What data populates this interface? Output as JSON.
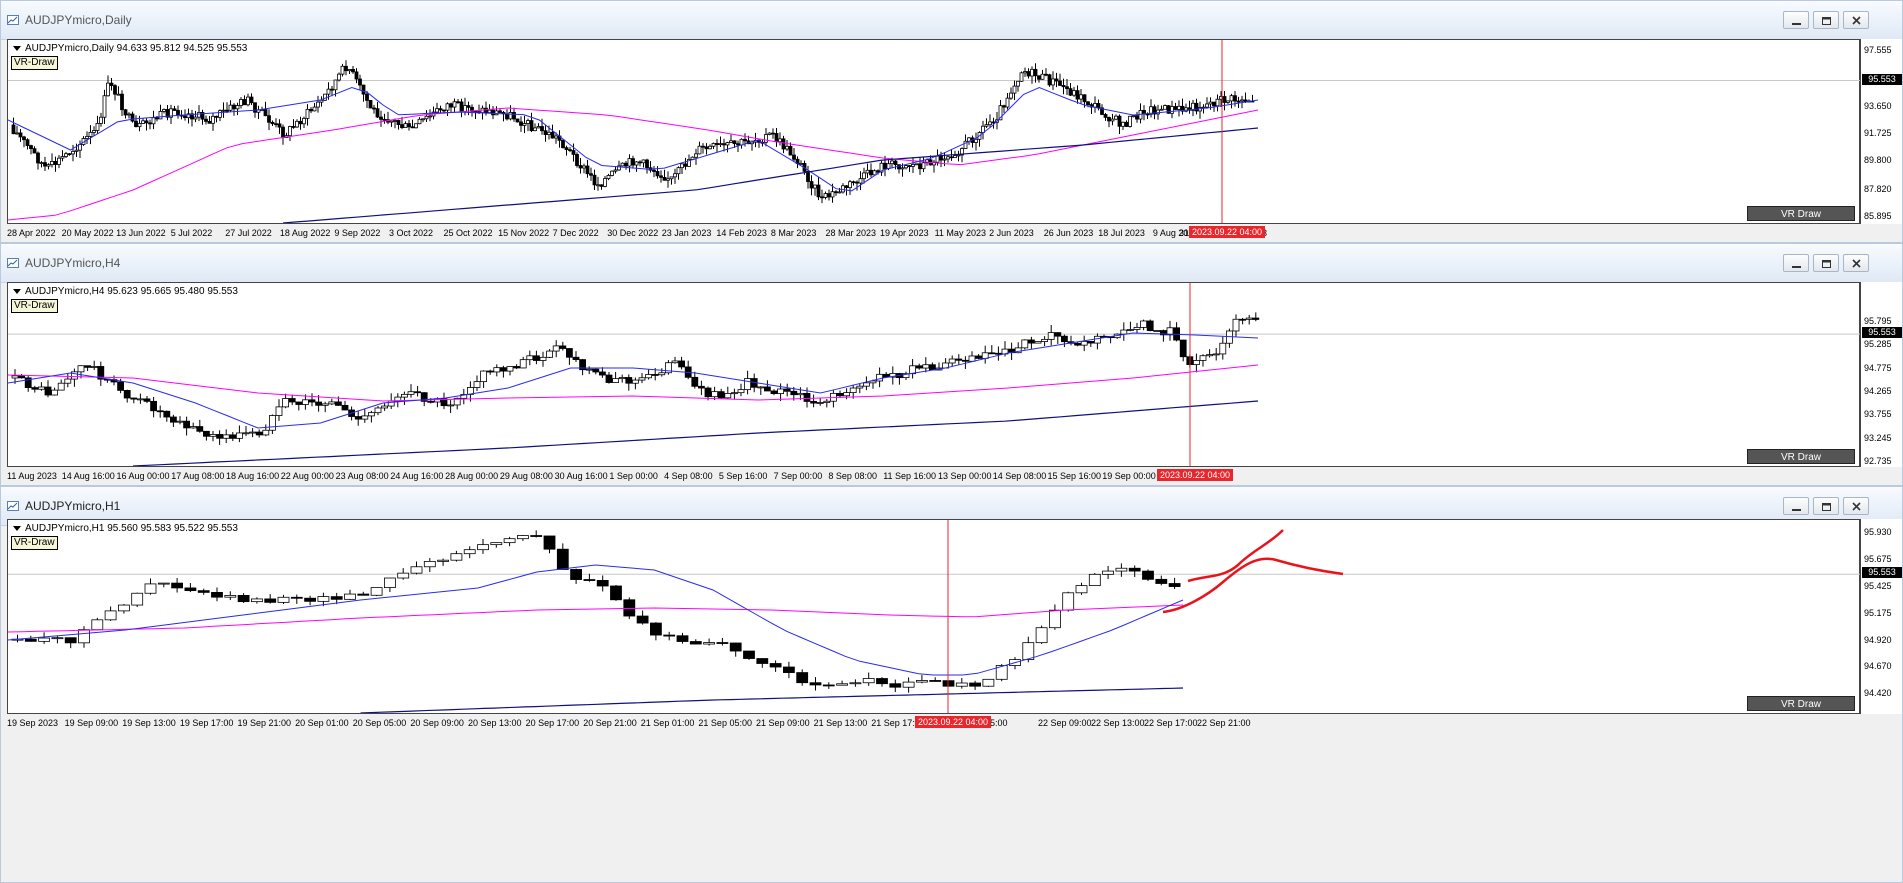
{
  "colors": {
    "ma_fast": "#2a2af0",
    "ma_mid": "#ff00ff",
    "ma_slow": "#101080",
    "cursor_line": "#e8262b",
    "drawing": "#e8141c",
    "price_tag": "#000000"
  },
  "icons": {
    "window": "chart-window-icon",
    "minimize": "minimize-icon",
    "restore": "restore-icon",
    "close": "close-icon"
  },
  "windows": [
    {
      "title": "AUDJPYmicro,Daily",
      "info": "AUDJPYmicro,Daily  94.633 95.812 94.525 95.553",
      "vr_draw_label": "VR-Draw",
      "vr_button_label": "VR Draw",
      "current_price": "95.553",
      "price_labels": [
        "97.555",
        "95.553",
        "93.650",
        "91.725",
        "89.800",
        "87.820",
        "85.895"
      ],
      "price_range": [
        85.895,
        97.555
      ],
      "time_labels": [
        "28 Apr 2022",
        "20 May 2022",
        "13 Jun 2022",
        "5 Jul 2022",
        "27 Jul 2022",
        "18 Aug 2022",
        "9 Sep 2022",
        "3 Oct 2022",
        "25 Oct 2022",
        "15 Nov 2022",
        "7 Dec 2022",
        "30 Dec 2022",
        "23 Jan 2023",
        "14 Feb 2023",
        "8 Mar 2023",
        "28 Mar 2023",
        "19 Apr 2023",
        "11 May 2023",
        "2 Jun 2023",
        "26 Jun 2023",
        "18 Jul 2023",
        "9 Aug 2023",
        "31 Au",
        "23"
      ],
      "cursor_time": "2023.09.22 04:00"
    },
    {
      "title": "AUDJPYmicro,H4",
      "info": "AUDJPYmicro,H4  95.623 95.665 95.480 95.553",
      "vr_draw_label": "VR-Draw",
      "vr_button_label": "VR Draw",
      "current_price": "95.553",
      "price_labels": [
        "95.795",
        "95.553",
        "95.285",
        "94.775",
        "94.265",
        "93.755",
        "93.245",
        "92.735"
      ],
      "price_range": [
        92.735,
        95.795
      ],
      "time_labels": [
        "11 Aug 2023",
        "14 Aug 16:00",
        "16 Aug 00:00",
        "17 Aug 08:00",
        "18 Aug 16:00",
        "22 Aug 00:00",
        "23 Aug 08:00",
        "24 Aug 16:00",
        "28 Aug 00:00",
        "29 Aug 08:00",
        "30 Aug 16:00",
        "1 Sep 00:00",
        "4 Sep 08:00",
        "5 Sep 16:00",
        "7 Sep 00:00",
        "8 Sep 08:00",
        "11 Sep 16:00",
        "13 Sep 00:00",
        "14 Sep 08:00",
        "15 Sep 16:00",
        "19 Sep 00:00",
        "20 Sep 08:00"
      ],
      "cursor_time": "2023.09.22 04:00"
    },
    {
      "title": "AUDJPYmicro,H1",
      "info": "AUDJPYmicro,H1  95.560 95.583 95.522 95.553",
      "vr_draw_label": "VR-Draw",
      "vr_button_label": "VR Draw",
      "current_price": "95.553",
      "price_labels": [
        "95.930",
        "95.675",
        "95.553",
        "95.425",
        "95.175",
        "94.920",
        "94.670",
        "94.420"
      ],
      "price_range": [
        94.42,
        95.93
      ],
      "time_labels": [
        "19 Sep 2023",
        "19 Sep 09:00",
        "19 Sep 13:00",
        "19 Sep 17:00",
        "19 Sep 21:00",
        "20 Sep 01:00",
        "20 Sep 05:00",
        "20 Sep 09:00",
        "20 Sep 13:00",
        "20 Sep 17:00",
        "20 Sep 21:00",
        "21 Sep 01:00",
        "21 Sep 05:00",
        "21 Sep 09:00",
        "21 Sep 13:00",
        "21 Sep 17:00",
        "21 Sep 21:00",
        "05:00",
        "22 Sep 09:00",
        "22 Sep 13:00",
        "22 Sep 17:00",
        "22 Sep 21:00"
      ],
      "cursor_time": "2023.09.22 04:00"
    }
  ]
}
